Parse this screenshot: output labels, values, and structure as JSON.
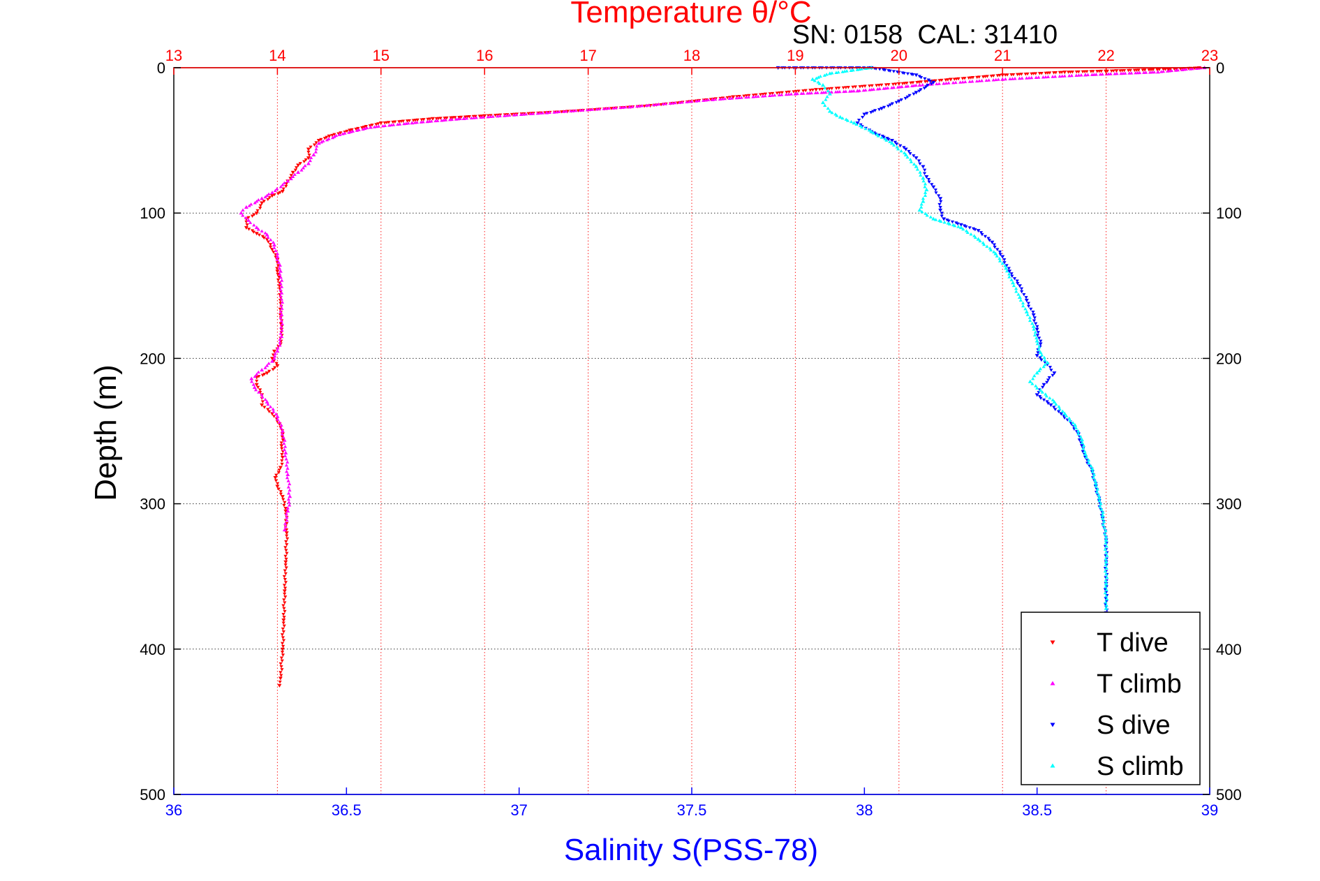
{
  "chart_data": {
    "type": "scatter",
    "title": "Temperature θ/°C",
    "subtitle": "SN: 0158  CAL: 31410",
    "xlabel": "Salinity S(PSS-78)",
    "ylabel": "Depth (m)",
    "grid": true,
    "legend_position": "bottom-right",
    "y_axis": {
      "range": [
        0,
        500
      ],
      "reversed": true,
      "ticks": [
        0,
        100,
        200,
        300,
        400,
        500
      ],
      "tick_labels": [
        "0",
        "100",
        "200",
        "300",
        "400",
        "500"
      ]
    },
    "x_axis_top": {
      "quantity": "temperature",
      "range": [
        13,
        23
      ],
      "ticks": [
        13,
        14,
        15,
        16,
        17,
        18,
        19,
        20,
        21,
        22,
        23
      ],
      "tick_labels": [
        "13",
        "14",
        "15",
        "16",
        "17",
        "18",
        "19",
        "20",
        "21",
        "22",
        "23"
      ],
      "color": "#ff0000"
    },
    "x_axis_bottom": {
      "quantity": "salinity",
      "range": [
        36,
        39
      ],
      "ticks": [
        36,
        36.5,
        37,
        37.5,
        38,
        38.5,
        39
      ],
      "tick_labels": [
        "36",
        "36.5",
        "37",
        "37.5",
        "38",
        "38.5",
        "39"
      ],
      "color": "#0000ff"
    },
    "series": [
      {
        "name": "T dive",
        "axis": "top",
        "marker": "triangle-down",
        "color": "#ff0000",
        "points": [
          [
            22.9,
            0
          ],
          [
            22.6,
            1
          ],
          [
            22.1,
            2
          ],
          [
            21.6,
            3
          ],
          [
            21.0,
            5
          ],
          [
            20.5,
            8
          ],
          [
            20.0,
            11
          ],
          [
            19.2,
            15
          ],
          [
            18.4,
            20
          ],
          [
            17.6,
            26
          ],
          [
            16.8,
            30
          ],
          [
            16.0,
            33
          ],
          [
            15.5,
            35
          ],
          [
            15.0,
            38
          ],
          [
            14.7,
            43
          ],
          [
            14.5,
            47
          ],
          [
            14.4,
            50
          ],
          [
            14.3,
            56
          ],
          [
            14.3,
            62
          ],
          [
            14.2,
            67
          ],
          [
            14.15,
            72
          ],
          [
            14.1,
            78
          ],
          [
            14.05,
            85
          ],
          [
            13.95,
            88
          ],
          [
            13.85,
            93
          ],
          [
            13.8,
            100
          ],
          [
            13.7,
            104
          ],
          [
            13.7,
            110
          ],
          [
            13.8,
            114
          ],
          [
            13.9,
            118
          ],
          [
            13.95,
            125
          ],
          [
            14.0,
            132
          ],
          [
            14.0,
            140
          ],
          [
            14.02,
            150
          ],
          [
            14.03,
            160
          ],
          [
            14.03,
            170
          ],
          [
            14.04,
            180
          ],
          [
            14.03,
            190
          ],
          [
            13.97,
            195
          ],
          [
            13.95,
            200
          ],
          [
            14.0,
            205
          ],
          [
            13.9,
            210
          ],
          [
            13.8,
            213
          ],
          [
            13.8,
            218
          ],
          [
            13.85,
            225
          ],
          [
            13.85,
            232
          ],
          [
            13.95,
            238
          ],
          [
            14.02,
            245
          ],
          [
            14.05,
            252
          ],
          [
            14.04,
            260
          ],
          [
            14.05,
            268
          ],
          [
            14.03,
            275
          ],
          [
            13.98,
            282
          ],
          [
            14.0,
            288
          ],
          [
            14.05,
            295
          ],
          [
            14.08,
            305
          ],
          [
            14.09,
            320
          ],
          [
            14.08,
            340
          ],
          [
            14.07,
            360
          ],
          [
            14.06,
            380
          ],
          [
            14.05,
            400
          ],
          [
            14.03,
            420
          ],
          [
            14.02,
            425
          ]
        ]
      },
      {
        "name": "T climb",
        "axis": "top",
        "marker": "triangle-up",
        "color": "#ff00ff",
        "points": [
          [
            22.95,
            0
          ],
          [
            22.5,
            3
          ],
          [
            21.8,
            5
          ],
          [
            21.0,
            8
          ],
          [
            20.2,
            12
          ],
          [
            19.6,
            16
          ],
          [
            19.0,
            18
          ],
          [
            18.2,
            22
          ],
          [
            17.4,
            27
          ],
          [
            16.6,
            31
          ],
          [
            15.8,
            35
          ],
          [
            15.3,
            38
          ],
          [
            14.9,
            41
          ],
          [
            14.6,
            46
          ],
          [
            14.4,
            52
          ],
          [
            14.35,
            60
          ],
          [
            14.3,
            66
          ],
          [
            14.2,
            72
          ],
          [
            14.1,
            78
          ],
          [
            13.95,
            86
          ],
          [
            13.85,
            90
          ],
          [
            13.7,
            96
          ],
          [
            13.65,
            100
          ],
          [
            13.72,
            105
          ],
          [
            13.8,
            110
          ],
          [
            13.9,
            115
          ],
          [
            13.97,
            122
          ],
          [
            14.0,
            130
          ],
          [
            14.03,
            140
          ],
          [
            14.04,
            155
          ],
          [
            14.04,
            170
          ],
          [
            14.04,
            185
          ],
          [
            14.0,
            195
          ],
          [
            13.95,
            202
          ],
          [
            13.85,
            208
          ],
          [
            13.75,
            214
          ],
          [
            13.78,
            220
          ],
          [
            13.9,
            230
          ],
          [
            14.0,
            240
          ],
          [
            14.05,
            250
          ],
          [
            14.08,
            265
          ],
          [
            14.1,
            280
          ],
          [
            14.12,
            295
          ],
          [
            14.1,
            305
          ],
          [
            14.07,
            318
          ]
        ]
      },
      {
        "name": "S dive",
        "axis": "bottom",
        "marker": "triangle-down",
        "color": "#0000ff",
        "points": [
          [
            37.75,
            0
          ],
          [
            38.02,
            0
          ],
          [
            38.15,
            5
          ],
          [
            38.2,
            10
          ],
          [
            38.15,
            17
          ],
          [
            38.1,
            23
          ],
          [
            38.05,
            28
          ],
          [
            38.0,
            32
          ],
          [
            37.98,
            38
          ],
          [
            38.02,
            44
          ],
          [
            38.08,
            50
          ],
          [
            38.12,
            56
          ],
          [
            38.15,
            62
          ],
          [
            38.17,
            68
          ],
          [
            38.18,
            75
          ],
          [
            38.2,
            82
          ],
          [
            38.22,
            90
          ],
          [
            38.22,
            98
          ],
          [
            38.23,
            104
          ],
          [
            38.28,
            108
          ],
          [
            38.33,
            112
          ],
          [
            38.37,
            120
          ],
          [
            38.4,
            130
          ],
          [
            38.42,
            140
          ],
          [
            38.45,
            150
          ],
          [
            38.47,
            160
          ],
          [
            38.49,
            170
          ],
          [
            38.5,
            180
          ],
          [
            38.51,
            190
          ],
          [
            38.5,
            198
          ],
          [
            38.53,
            204
          ],
          [
            38.55,
            210
          ],
          [
            38.52,
            218
          ],
          [
            38.5,
            225
          ],
          [
            38.54,
            232
          ],
          [
            38.57,
            238
          ],
          [
            38.6,
            245
          ],
          [
            38.62,
            252
          ],
          [
            38.63,
            260
          ],
          [
            38.64,
            268
          ],
          [
            38.66,
            278
          ],
          [
            38.67,
            288
          ],
          [
            38.68,
            298
          ],
          [
            38.69,
            310
          ],
          [
            38.7,
            325
          ],
          [
            38.7,
            340
          ],
          [
            38.7,
            355
          ],
          [
            38.7,
            375
          ]
        ]
      },
      {
        "name": "S climb",
        "axis": "bottom",
        "marker": "triangle-up",
        "color": "#00ffff",
        "points": [
          [
            38.02,
            0
          ],
          [
            37.9,
            4
          ],
          [
            37.85,
            8
          ],
          [
            37.88,
            12
          ],
          [
            37.9,
            18
          ],
          [
            37.88,
            24
          ],
          [
            37.9,
            30
          ],
          [
            37.93,
            34
          ],
          [
            37.97,
            38
          ],
          [
            38.02,
            44
          ],
          [
            38.08,
            52
          ],
          [
            38.12,
            60
          ],
          [
            38.15,
            68
          ],
          [
            38.17,
            76
          ],
          [
            38.18,
            84
          ],
          [
            38.17,
            92
          ],
          [
            38.16,
            98
          ],
          [
            38.2,
            104
          ],
          [
            38.28,
            110
          ],
          [
            38.33,
            118
          ],
          [
            38.38,
            128
          ],
          [
            38.41,
            138
          ],
          [
            38.43,
            148
          ],
          [
            38.45,
            158
          ],
          [
            38.47,
            168
          ],
          [
            38.49,
            178
          ],
          [
            38.5,
            188
          ],
          [
            38.51,
            196
          ],
          [
            38.53,
            203
          ],
          [
            38.5,
            210
          ],
          [
            38.48,
            216
          ],
          [
            38.51,
            222
          ],
          [
            38.55,
            230
          ],
          [
            38.58,
            238
          ],
          [
            38.61,
            246
          ],
          [
            38.63,
            256
          ],
          [
            38.64,
            266
          ],
          [
            38.66,
            276
          ],
          [
            38.67,
            286
          ],
          [
            38.68,
            296
          ],
          [
            38.69,
            308
          ],
          [
            38.7,
            325
          ],
          [
            38.7,
            340
          ],
          [
            38.7,
            355
          ],
          [
            38.7,
            372
          ]
        ]
      }
    ]
  }
}
